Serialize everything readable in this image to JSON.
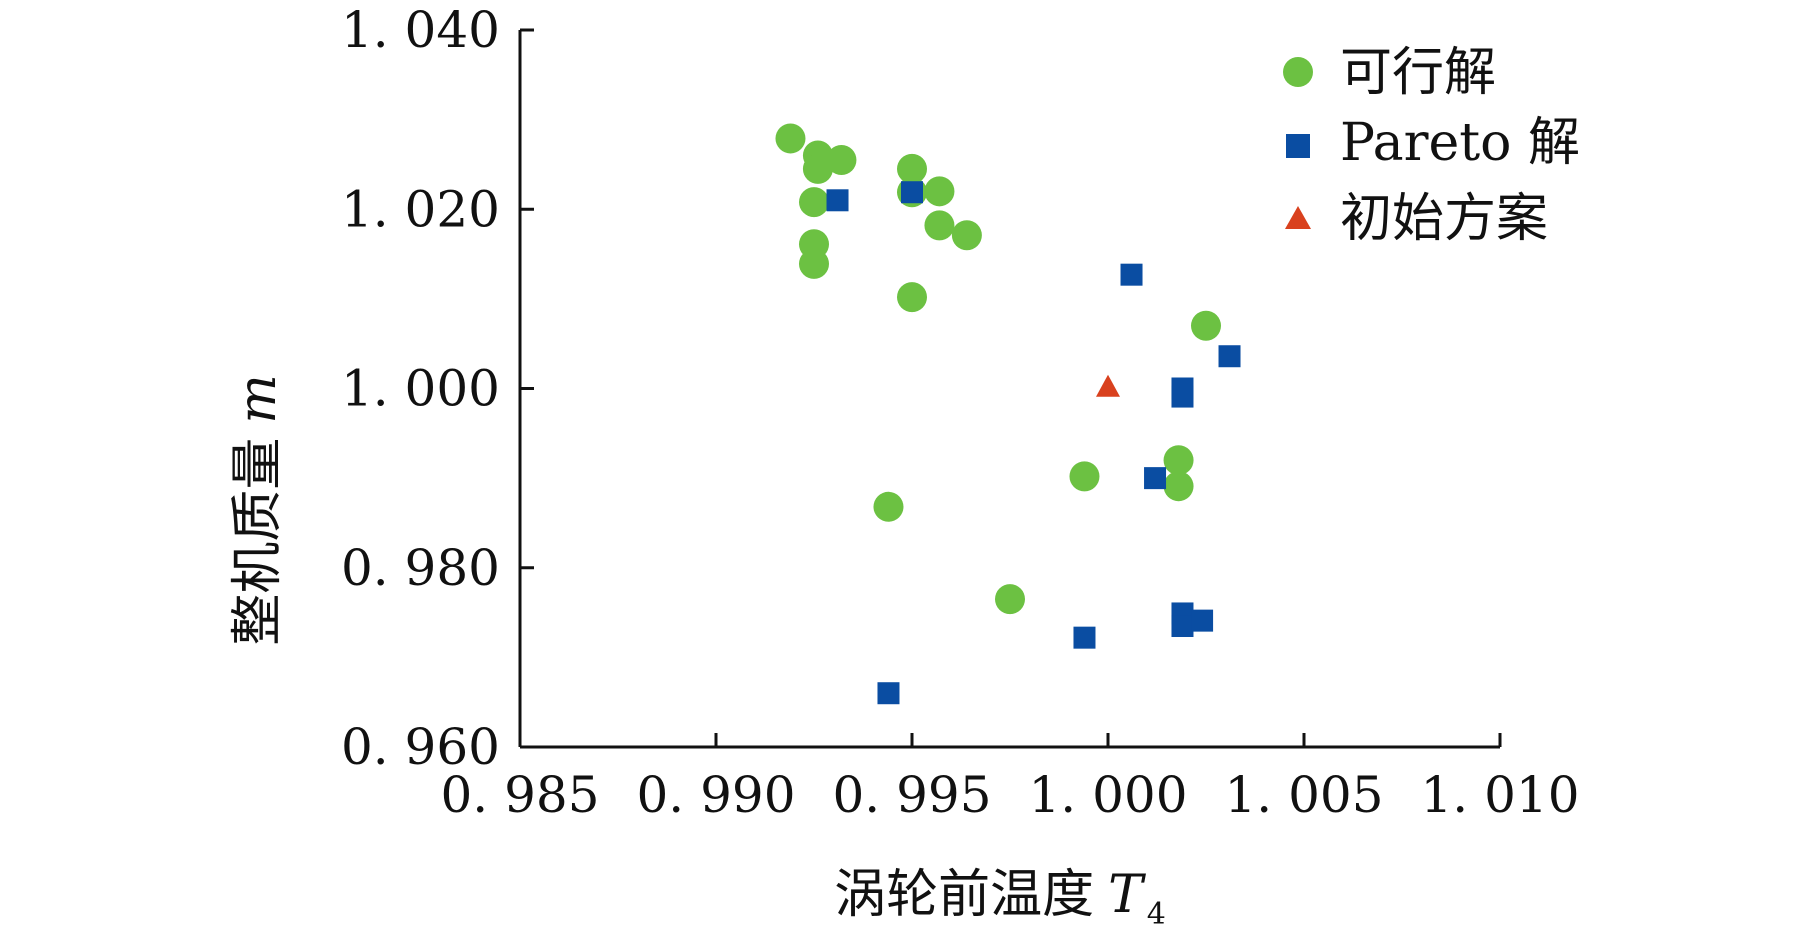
{
  "chart_data": {
    "type": "scatter",
    "xlabel": "涡轮前温度",
    "xlabel_var": "T",
    "xlabel_sub": "4",
    "ylabel": "整机质量",
    "ylabel_var": "m",
    "xlim": [
      0.985,
      1.01
    ],
    "ylim": [
      0.96,
      1.04
    ],
    "x_ticks": [
      0.985,
      0.99,
      0.995,
      1.0,
      1.005,
      1.01
    ],
    "y_ticks": [
      0.96,
      0.98,
      1.0,
      1.02,
      1.04
    ],
    "x_tick_labels": [
      "0. 985",
      "0. 990",
      "0. 995",
      "1. 000",
      "1. 005",
      "1. 010"
    ],
    "y_tick_labels": [
      "0. 960",
      "0. 980",
      "1. 000",
      "1. 020",
      "1. 040"
    ],
    "grid": false,
    "legend_position": "top-right",
    "series": [
      {
        "name": "可行解",
        "marker": "circle",
        "color": "#6cc142",
        "points": [
          [
            0.9919,
            1.0279
          ],
          [
            0.9926,
            1.026
          ],
          [
            0.9926,
            1.0245
          ],
          [
            0.9932,
            1.0255
          ],
          [
            0.9925,
            1.0208
          ],
          [
            0.9925,
            1.0161
          ],
          [
            0.9925,
            1.0139
          ],
          [
            0.995,
            1.0245
          ],
          [
            0.995,
            1.0219
          ],
          [
            0.9957,
            1.022
          ],
          [
            0.9957,
            1.0182
          ],
          [
            0.9964,
            1.0171
          ],
          [
            0.995,
            1.0102
          ],
          [
            0.9944,
            0.9868
          ],
          [
            0.9975,
            0.9765
          ],
          [
            0.9994,
            0.9902
          ],
          [
            1.0018,
            0.992
          ],
          [
            1.0018,
            0.9891
          ],
          [
            1.0025,
            1.007
          ]
        ]
      },
      {
        "name": "Pareto 解",
        "marker": "square",
        "color": "#0a4da2",
        "points": [
          [
            0.9931,
            1.021
          ],
          [
            0.995,
            1.0219
          ],
          [
            1.0006,
            1.0127
          ],
          [
            1.0031,
            1.0036
          ],
          [
            1.0019,
            1.0
          ],
          [
            1.0019,
            0.9991
          ],
          [
            1.0012,
            0.99
          ],
          [
            1.0019,
            0.9749
          ],
          [
            1.0019,
            0.9735
          ],
          [
            1.0024,
            0.9741
          ],
          [
            0.9994,
            0.9722
          ],
          [
            0.9944,
            0.966
          ]
        ]
      },
      {
        "name": "初始方案",
        "marker": "triangle",
        "color": "#d9411e",
        "points": [
          [
            1.0,
            1.0002
          ]
        ]
      }
    ]
  }
}
